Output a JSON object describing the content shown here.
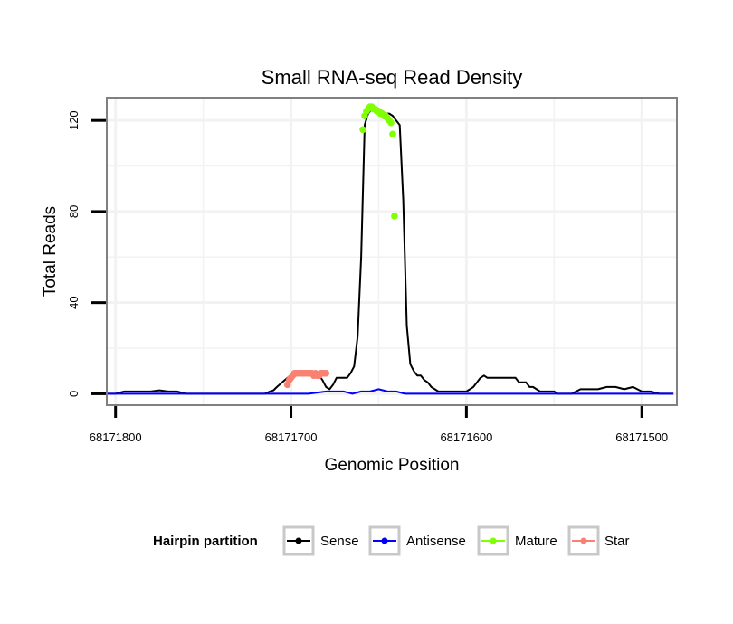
{
  "chart_data": {
    "type": "line",
    "title": "Small RNA-seq Read Density",
    "xlabel": "Genomic Position",
    "ylabel": "Total Reads",
    "xlim": [
      68171805,
      68171480
    ],
    "ylim": [
      -5,
      130
    ],
    "x_reversed": true,
    "x_ticks": [
      68171800,
      68171700,
      68171600,
      68171500
    ],
    "x_tick_labels": [
      "68171800",
      "68171700",
      "68171600",
      "68171500"
    ],
    "y_ticks": [
      0,
      40,
      80,
      120
    ],
    "y_tick_labels": [
      "0",
      "40",
      "80",
      "120"
    ],
    "grid": true,
    "legend": {
      "title": "Hairpin partition",
      "position": "bottom",
      "entries": [
        "Sense",
        "Antisense",
        "Mature",
        "Star"
      ]
    },
    "colors": {
      "Sense": "#000000",
      "Antisense": "#0000ff",
      "Mature": "#7fff00",
      "Star": "#fa8072",
      "frame": "#808080",
      "grid": "#f2f2f2"
    },
    "series": [
      {
        "name": "Sense",
        "style": "line",
        "x": [
          68171805,
          68171800,
          68171795,
          68171790,
          68171785,
          68171780,
          68171775,
          68171770,
          68171765,
          68171760,
          68171750,
          68171740,
          68171730,
          68171720,
          68171715,
          68171712,
          68171710,
          68171708,
          68171705,
          68171702,
          68171700,
          68171698,
          68171696,
          68171694,
          68171692,
          68171690,
          68171688,
          68171686,
          68171684,
          68171682,
          68171680,
          68171678,
          68171676,
          68171674,
          68171672,
          68171670,
          68171668,
          68171666,
          68171664,
          68171662,
          68171660,
          68171658,
          68171656,
          68171654,
          68171652,
          68171650,
          68171648,
          68171646,
          68171644,
          68171642,
          68171640,
          68171638,
          68171636,
          68171634,
          68171632,
          68171630,
          68171628,
          68171626,
          68171624,
          68171622,
          68171620,
          68171618,
          68171616,
          68171614,
          68171612,
          68171610,
          68171608,
          68171606,
          68171604,
          68171602,
          68171600,
          68171598,
          68171596,
          68171594,
          68171592,
          68171590,
          68171588,
          68171586,
          68171584,
          68171582,
          68171580,
          68171578,
          68171576,
          68171574,
          68171572,
          68171570,
          68171568,
          68171566,
          68171564,
          68171562,
          68171560,
          68171558,
          68171556,
          68171554,
          68171552,
          68171550,
          68171548,
          68171546,
          68171544,
          68171542,
          68171540,
          68171535,
          68171530,
          68171525,
          68171520,
          68171515,
          68171510,
          68171505,
          68171500,
          68171495,
          68171490,
          68171485,
          68171482
        ],
        "values": [
          0,
          0,
          1,
          1,
          1,
          1,
          1.5,
          1,
          1,
          0,
          0,
          0,
          0,
          0,
          0,
          1,
          1.5,
          3,
          5,
          7,
          8,
          9,
          9,
          9,
          9,
          9,
          8,
          9,
          8,
          6,
          3,
          2,
          4,
          7,
          7,
          7,
          7,
          9,
          12,
          25,
          60,
          118,
          123,
          125,
          126,
          125,
          124,
          123,
          123,
          122,
          120,
          118,
          85,
          30,
          13,
          10,
          8,
          8,
          6,
          5,
          3,
          2,
          1,
          1,
          1,
          1,
          1,
          1,
          1,
          1,
          1,
          2,
          3,
          5,
          7,
          8,
          7,
          7,
          7,
          7,
          7,
          7,
          7,
          7,
          7,
          5,
          5,
          5,
          3,
          3,
          2,
          1,
          1,
          1,
          1,
          1,
          0,
          0,
          0,
          0,
          0,
          2,
          2,
          2,
          3,
          3,
          2,
          3,
          1,
          1,
          0,
          0,
          0
        ]
      },
      {
        "name": "Antisense",
        "style": "line",
        "x": [
          68171805,
          68171800,
          68171795,
          68171790,
          68171785,
          68171780,
          68171770,
          68171760,
          68171750,
          68171740,
          68171730,
          68171720,
          68171710,
          68171705,
          68171700,
          68171690,
          68171680,
          68171675,
          68171670,
          68171665,
          68171660,
          68171658,
          68171655,
          68171650,
          68171645,
          68171640,
          68171635,
          68171630,
          68171620,
          68171600,
          68171580,
          68171560,
          68171540,
          68171520,
          68171500,
          68171485,
          68171482
        ],
        "values": [
          0,
          0,
          0,
          0,
          0,
          0,
          0,
          0,
          0,
          0,
          0,
          0,
          0,
          0,
          0,
          0,
          1,
          1,
          1,
          0,
          1,
          1,
          1,
          2,
          1,
          1,
          0,
          0,
          0,
          0,
          0,
          0,
          0,
          0,
          0,
          0,
          0
        ]
      },
      {
        "name": "Mature",
        "style": "points",
        "x": [
          68171659,
          68171658,
          68171657,
          68171656,
          68171655,
          68171654,
          68171653,
          68171652,
          68171651,
          68171650,
          68171649,
          68171648,
          68171647,
          68171646,
          68171645,
          68171644,
          68171643,
          68171642,
          68171641
        ],
        "values": [
          116,
          122,
          124,
          125,
          126,
          126,
          125,
          125,
          124,
          124,
          123,
          123,
          122,
          122,
          121,
          120,
          119,
          114,
          78
        ]
      },
      {
        "name": "Star",
        "style": "points",
        "x": [
          68171702,
          68171701,
          68171700,
          68171699,
          68171698,
          68171697,
          68171696,
          68171695,
          68171694,
          68171693,
          68171692,
          68171691,
          68171690,
          68171689,
          68171688,
          68171687,
          68171686,
          68171685,
          68171684,
          68171683,
          68171682,
          68171681,
          68171680
        ],
        "values": [
          4,
          6,
          7,
          8,
          9,
          9,
          9,
          9,
          9,
          9,
          9,
          9,
          9,
          9,
          9,
          8,
          9,
          8,
          8,
          9,
          9,
          9,
          9
        ]
      }
    ]
  }
}
